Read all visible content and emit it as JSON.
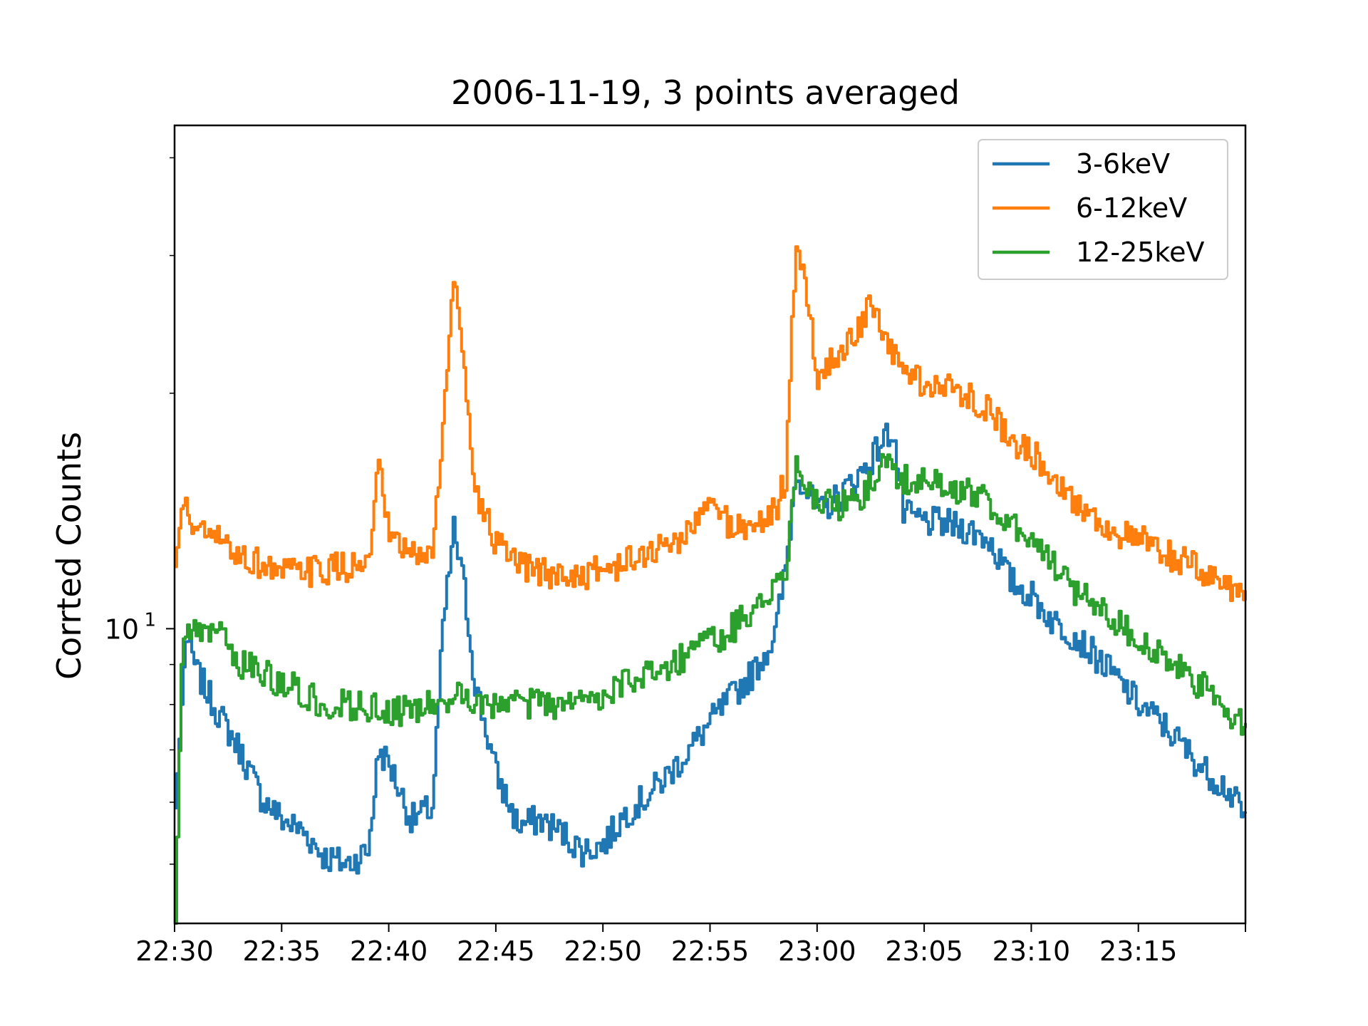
{
  "chart_data": {
    "type": "line",
    "title": "2006-11-19, 3 points averaged",
    "xlabel": "",
    "ylabel": "Corrted Counts",
    "yscale": "log",
    "xlim": [
      "22:30",
      "23:20"
    ],
    "ylim": [
      4.2,
      44
    ],
    "x_ticks": [
      "22:30",
      "22:35",
      "22:40",
      "22:45",
      "22:50",
      "22:55",
      "23:00",
      "23:05",
      "23:10",
      "23:15"
    ],
    "y_ticks": [
      {
        "value": 10,
        "label": "10",
        "exponent": "1"
      }
    ],
    "grid": false,
    "legend": {
      "position": "top-right"
    },
    "series": [
      {
        "name": "3-6keV",
        "color": "#1f77b4",
        "points": [
          [
            "22:30",
            5.9
          ],
          [
            "22:30:30",
            9.8
          ],
          [
            "22:31",
            8.8
          ],
          [
            "22:32",
            7.8
          ],
          [
            "22:33",
            7.0
          ],
          [
            "22:34",
            6.1
          ],
          [
            "22:35",
            5.7
          ],
          [
            "22:36",
            5.5
          ],
          [
            "22:37",
            5.1
          ],
          [
            "22:38",
            5.0
          ],
          [
            "22:39",
            5.2
          ],
          [
            "22:39:30",
            7.0
          ],
          [
            "22:40",
            6.7
          ],
          [
            "22:41",
            5.7
          ],
          [
            "22:42",
            5.9
          ],
          [
            "22:42:30",
            10.0
          ],
          [
            "22:43",
            13.4
          ],
          [
            "22:43:30",
            11.2
          ],
          [
            "22:44",
            8.5
          ],
          [
            "22:45",
            6.5
          ],
          [
            "22:46",
            5.6
          ],
          [
            "22:47",
            5.7
          ],
          [
            "22:48",
            5.5
          ],
          [
            "22:49",
            5.2
          ],
          [
            "22:50",
            5.3
          ],
          [
            "22:51",
            5.8
          ],
          [
            "22:52",
            6.1
          ],
          [
            "22:53",
            6.5
          ],
          [
            "22:54",
            7.0
          ],
          [
            "22:55",
            7.6
          ],
          [
            "22:56",
            8.2
          ],
          [
            "22:57",
            8.8
          ],
          [
            "22:58",
            9.8
          ],
          [
            "22:58:30",
            12.0
          ],
          [
            "22:59",
            16.0
          ],
          [
            "23:00",
            14.0
          ],
          [
            "23:01",
            14.8
          ],
          [
            "23:02",
            15.8
          ],
          [
            "23:02:30",
            16.5
          ],
          [
            "23:03",
            17.4
          ],
          [
            "23:03:30",
            18.0
          ],
          [
            "23:04",
            14.0
          ],
          [
            "23:05",
            13.7
          ],
          [
            "23:06",
            13.6
          ],
          [
            "23:07",
            13.4
          ],
          [
            "23:08",
            13.0
          ],
          [
            "23:09",
            11.5
          ],
          [
            "23:10",
            11.0
          ],
          [
            "23:11",
            10.2
          ],
          [
            "23:12",
            9.8
          ],
          [
            "23:13",
            9.2
          ],
          [
            "23:14",
            8.6
          ],
          [
            "23:15",
            8.0
          ],
          [
            "23:16",
            7.6
          ],
          [
            "23:17",
            7.1
          ],
          [
            "23:18",
            6.6
          ],
          [
            "23:19",
            6.3
          ],
          [
            "23:20",
            5.7
          ]
        ]
      },
      {
        "name": "6-12keV",
        "color": "#ff7f0e",
        "points": [
          [
            "22:30",
            12.0
          ],
          [
            "22:30:20",
            14.5
          ],
          [
            "22:31",
            13.3
          ],
          [
            "22:32",
            13.0
          ],
          [
            "22:33",
            12.4
          ],
          [
            "22:34",
            12.1
          ],
          [
            "22:35",
            11.8
          ],
          [
            "22:36",
            11.8
          ],
          [
            "22:37",
            11.9
          ],
          [
            "22:38",
            12.0
          ],
          [
            "22:39",
            12.0
          ],
          [
            "22:39:30",
            16.0
          ],
          [
            "22:40",
            13.0
          ],
          [
            "22:41",
            12.4
          ],
          [
            "22:42",
            12.5
          ],
          [
            "22:42:30",
            18.0
          ],
          [
            "22:43",
            28.0
          ],
          [
            "22:43:30",
            22.0
          ],
          [
            "22:44",
            15.0
          ],
          [
            "22:45",
            12.8
          ],
          [
            "22:46",
            12.0
          ],
          [
            "22:47",
            11.8
          ],
          [
            "22:48",
            11.7
          ],
          [
            "22:49",
            11.7
          ],
          [
            "22:50",
            11.9
          ],
          [
            "22:51",
            12.1
          ],
          [
            "22:52",
            12.5
          ],
          [
            "22:53",
            12.8
          ],
          [
            "22:54",
            13.3
          ],
          [
            "22:55",
            14.5
          ],
          [
            "22:56",
            13.5
          ],
          [
            "22:57",
            13.5
          ],
          [
            "22:58",
            14.2
          ],
          [
            "22:58:30",
            15.5
          ],
          [
            "22:59",
            32.0
          ],
          [
            "22:59:30",
            26.0
          ],
          [
            "23:00",
            21.0
          ],
          [
            "23:01",
            22.5
          ],
          [
            "23:02",
            24.5
          ],
          [
            "23:02:30",
            26.0
          ],
          [
            "23:03",
            23.5
          ],
          [
            "23:04",
            21.5
          ],
          [
            "23:05",
            20.5
          ],
          [
            "23:06",
            20.3
          ],
          [
            "23:07",
            20.0
          ],
          [
            "23:08",
            19.0
          ],
          [
            "23:09",
            17.5
          ],
          [
            "23:10",
            16.8
          ],
          [
            "23:11",
            15.8
          ],
          [
            "23:12",
            14.5
          ],
          [
            "23:13",
            13.8
          ],
          [
            "23:14",
            13.2
          ],
          [
            "23:15",
            13.0
          ],
          [
            "23:16",
            12.5
          ],
          [
            "23:17",
            12.2
          ],
          [
            "23:18",
            11.8
          ],
          [
            "23:19",
            11.4
          ],
          [
            "23:20",
            11.2
          ]
        ]
      },
      {
        "name": "12-25keV",
        "color": "#2ca02c",
        "points": [
          [
            "22:30",
            4.2
          ],
          [
            "22:30:20",
            9.8
          ],
          [
            "22:31",
            9.8
          ],
          [
            "22:32",
            9.9
          ],
          [
            "22:33",
            9.0
          ],
          [
            "22:34",
            8.8
          ],
          [
            "22:35",
            8.5
          ],
          [
            "22:36",
            8.3
          ],
          [
            "22:37",
            8.0
          ],
          [
            "22:38",
            8.0
          ],
          [
            "22:39",
            7.9
          ],
          [
            "22:40",
            7.9
          ],
          [
            "22:41",
            7.8
          ],
          [
            "22:42",
            8.0
          ],
          [
            "22:43",
            8.2
          ],
          [
            "22:44",
            8.0
          ],
          [
            "22:45",
            7.9
          ],
          [
            "22:46",
            8.0
          ],
          [
            "22:47",
            8.0
          ],
          [
            "22:48",
            8.0
          ],
          [
            "22:49",
            8.0
          ],
          [
            "22:50",
            8.3
          ],
          [
            "22:51",
            8.5
          ],
          [
            "22:52",
            8.7
          ],
          [
            "22:53",
            9.0
          ],
          [
            "22:54",
            9.3
          ],
          [
            "22:55",
            9.6
          ],
          [
            "22:56",
            10.0
          ],
          [
            "22:57",
            10.6
          ],
          [
            "22:58",
            11.3
          ],
          [
            "22:58:30",
            12.0
          ],
          [
            "22:59",
            16.5
          ],
          [
            "23:00",
            14.5
          ],
          [
            "23:01",
            14.3
          ],
          [
            "23:02",
            14.6
          ],
          [
            "23:03",
            16.0
          ],
          [
            "23:03:30",
            16.0
          ],
          [
            "23:04",
            15.5
          ],
          [
            "23:05",
            15.4
          ],
          [
            "23:06",
            15.2
          ],
          [
            "23:07",
            15.0
          ],
          [
            "23:08",
            14.5
          ],
          [
            "23:09",
            13.8
          ],
          [
            "23:10",
            13.0
          ],
          [
            "23:11",
            12.0
          ],
          [
            "23:12",
            11.2
          ],
          [
            "23:13",
            10.8
          ],
          [
            "23:14",
            10.2
          ],
          [
            "23:15",
            9.7
          ],
          [
            "23:16",
            9.2
          ],
          [
            "23:17",
            8.8
          ],
          [
            "23:18",
            8.4
          ],
          [
            "23:19",
            7.9
          ],
          [
            "23:20",
            7.4
          ]
        ]
      }
    ]
  }
}
